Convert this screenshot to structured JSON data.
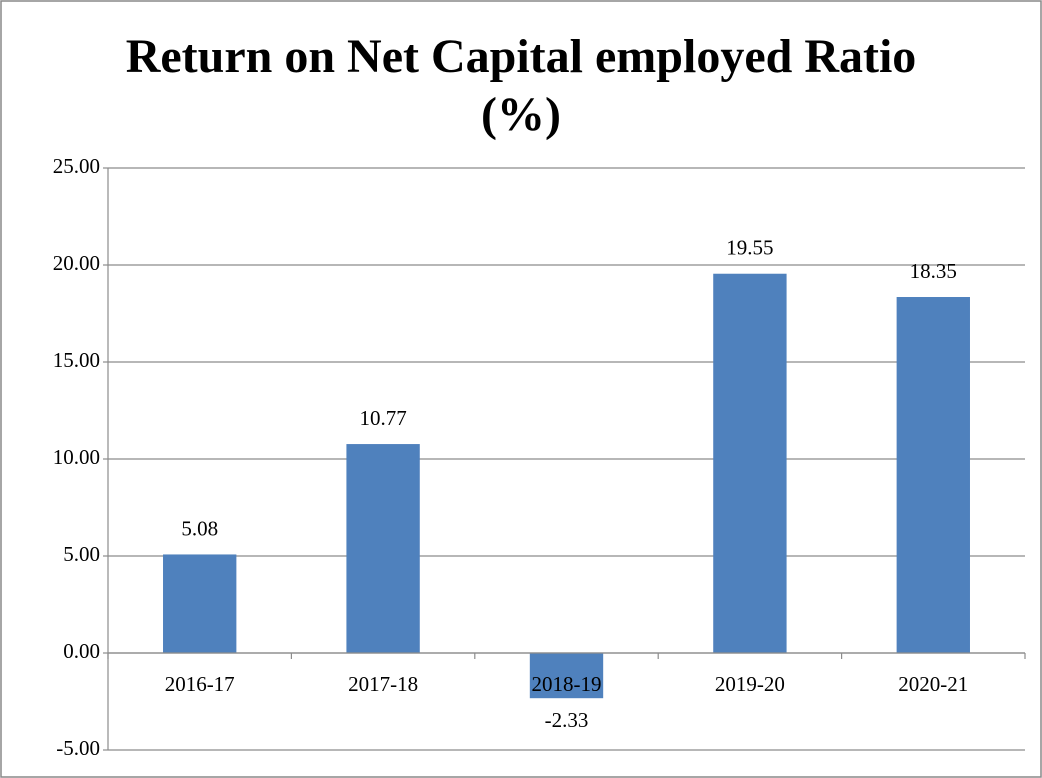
{
  "chart_data": {
    "type": "bar",
    "title": "Return on Net Capital employed Ratio (%)",
    "categories": [
      "2016-17",
      "2017-18",
      "2018-19",
      "2019-20",
      "2020-21"
    ],
    "values": [
      5.08,
      10.77,
      -2.33,
      19.55,
      18.35
    ],
    "color": "#4f81bd",
    "ylim": [
      -5,
      25
    ],
    "yticks": [
      {
        "value": -5,
        "label": "-5.00"
      },
      {
        "value": 0,
        "label": "0.00"
      },
      {
        "value": 5,
        "label": "5.00"
      },
      {
        "value": 10,
        "label": "10.00"
      },
      {
        "value": 15,
        "label": "15.00"
      },
      {
        "value": 20,
        "label": "20.00"
      },
      {
        "value": 25,
        "label": "25.00"
      }
    ],
    "grid": true
  }
}
